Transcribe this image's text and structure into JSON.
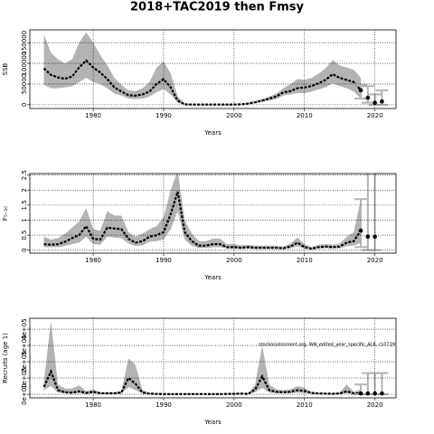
{
  "title": "2018+TAC2019 then Fmsy",
  "chart_data": [
    {
      "type": "line",
      "xlabel": "Years",
      "ylabel": "SSB",
      "grid": true,
      "color": "#000000",
      "band_color": "#b3b3b3",
      "bar_color": "#b3b3b3",
      "xlim": [
        1971,
        2023
      ],
      "ylim": [
        -9000,
        181000
      ],
      "xticks": [
        1980,
        1990,
        2000,
        2010,
        2020
      ],
      "yticks": [
        0,
        50000,
        100000,
        150000
      ],
      "x": [
        1973,
        1974,
        1975,
        1976,
        1977,
        1978,
        1979,
        1980,
        1981,
        1982,
        1983,
        1984,
        1985,
        1986,
        1987,
        1988,
        1989,
        1990,
        1991,
        1992,
        1993,
        1994,
        1995,
        1996,
        1997,
        1998,
        1999,
        2000,
        2001,
        2002,
        2003,
        2004,
        2005,
        2006,
        2007,
        2008,
        2009,
        2010,
        2011,
        2012,
        2013,
        2014,
        2015,
        2016,
        2017,
        2018
      ],
      "values": [
        88000,
        72000,
        66000,
        63000,
        68000,
        90000,
        107000,
        90000,
        78000,
        62000,
        42000,
        32000,
        23000,
        22000,
        25000,
        32000,
        50000,
        62000,
        42000,
        10000,
        1000,
        500,
        500,
        500,
        500,
        500,
        500,
        500,
        1000,
        3000,
        6000,
        10000,
        15000,
        20000,
        30000,
        33000,
        40000,
        42000,
        45000,
        52000,
        60000,
        74000,
        65000,
        60000,
        55000,
        35000
      ],
      "upper": [
        170000,
        125000,
        110000,
        100000,
        110000,
        150000,
        175000,
        150000,
        120000,
        95000,
        65000,
        48000,
        35000,
        33000,
        40000,
        55000,
        90000,
        105000,
        75000,
        20000,
        3000,
        1500,
        1500,
        1500,
        1500,
        1500,
        1500,
        1500,
        2000,
        5000,
        9000,
        14000,
        20000,
        27000,
        40000,
        50000,
        62000,
        60000,
        65000,
        75000,
        88000,
        108000,
        95000,
        90000,
        85000,
        65000
      ],
      "lower": [
        48000,
        40000,
        40000,
        42000,
        45000,
        55000,
        65000,
        55000,
        50000,
        40000,
        27000,
        22000,
        15000,
        14000,
        15000,
        20000,
        30000,
        38000,
        25000,
        5000,
        300,
        200,
        200,
        200,
        200,
        200,
        200,
        200,
        500,
        2000,
        4000,
        7000,
        10000,
        14000,
        22000,
        25000,
        28000,
        28000,
        32000,
        37000,
        42000,
        52000,
        45000,
        40000,
        32000,
        15000
      ],
      "projection": {
        "x": [
          2018,
          2019,
          2020,
          2021
        ],
        "values": [
          35000,
          17000,
          5000,
          8000
        ],
        "lower": [
          15000,
          5000,
          0,
          0
        ],
        "upper": [
          48000,
          45000,
          25000,
          35000
        ]
      }
    },
    {
      "type": "line",
      "xlabel": "Years",
      "ylabel": "F₅₋₁₀",
      "grid": true,
      "color": "#000000",
      "band_color": "#b3b3b3",
      "bar_color": "#b3b3b3",
      "xlim": [
        1971,
        2023
      ],
      "ylim": [
        -0.1,
        2.55
      ],
      "xticks": [
        1980,
        1990,
        2000,
        2010,
        2020
      ],
      "yticks": [
        0.0,
        0.5,
        1.0,
        1.5,
        2.0,
        2.5
      ],
      "x": [
        1973,
        1974,
        1975,
        1976,
        1977,
        1978,
        1979,
        1980,
        1981,
        1982,
        1983,
        1984,
        1985,
        1986,
        1987,
        1988,
        1989,
        1990,
        1991,
        1992,
        1993,
        1994,
        1995,
        1996,
        1997,
        1998,
        1999,
        2000,
        2001,
        2002,
        2003,
        2004,
        2005,
        2006,
        2007,
        2008,
        2009,
        2010,
        2011,
        2012,
        2013,
        2014,
        2015,
        2016,
        2017,
        2018
      ],
      "values": [
        0.2,
        0.18,
        0.2,
        0.28,
        0.4,
        0.5,
        0.8,
        0.38,
        0.35,
        0.75,
        0.72,
        0.7,
        0.38,
        0.25,
        0.3,
        0.45,
        0.5,
        0.6,
        1.2,
        1.95,
        0.6,
        0.3,
        0.15,
        0.15,
        0.2,
        0.2,
        0.1,
        0.1,
        0.08,
        0.1,
        0.08,
        0.08,
        0.08,
        0.08,
        0.06,
        0.12,
        0.25,
        0.1,
        0.05,
        0.1,
        0.12,
        0.1,
        0.12,
        0.25,
        0.3,
        0.65
      ],
      "upper": [
        0.45,
        0.35,
        0.4,
        0.55,
        0.75,
        0.95,
        1.4,
        0.7,
        0.65,
        1.3,
        1.15,
        1.15,
        0.6,
        0.45,
        0.55,
        0.7,
        0.8,
        1.1,
        2.0,
        2.65,
        1.0,
        0.55,
        0.3,
        0.3,
        0.38,
        0.38,
        0.2,
        0.2,
        0.16,
        0.18,
        0.15,
        0.15,
        0.15,
        0.15,
        0.12,
        0.22,
        0.42,
        0.2,
        0.1,
        0.18,
        0.2,
        0.18,
        0.22,
        0.45,
        0.6,
        1.7
      ],
      "lower": [
        0.1,
        0.1,
        0.1,
        0.14,
        0.2,
        0.25,
        0.45,
        0.2,
        0.18,
        0.45,
        0.42,
        0.4,
        0.22,
        0.14,
        0.16,
        0.28,
        0.3,
        0.35,
        0.7,
        1.3,
        0.35,
        0.15,
        0.07,
        0.07,
        0.1,
        0.1,
        0.05,
        0.05,
        0.04,
        0.05,
        0.04,
        0.04,
        0.04,
        0.04,
        0.03,
        0.06,
        0.13,
        0.05,
        0.02,
        0.05,
        0.06,
        0.05,
        0.06,
        0.13,
        0.15,
        0.25
      ],
      "projection": {
        "x": [
          2018,
          2019,
          2020
        ],
        "values": [
          0.65,
          0.45,
          0.45
        ],
        "lower": [
          0.1,
          0,
          0
        ],
        "upper": [
          1.7,
          2.6,
          2.6
        ]
      }
    },
    {
      "type": "line",
      "xlabel": "Years",
      "ylabel": "Recruits (age 1)",
      "grid": true,
      "color": "#000000",
      "band_color": "#b3b3b3",
      "bar_color": "#b3b3b3",
      "annotation": "stockassessment.org, WH_edited_year_specific_ALK, r10739",
      "xlim": [
        1971,
        2023
      ],
      "ylim": [
        -22000,
        467000
      ],
      "xticks": [
        1980,
        1990,
        2000,
        2010,
        2020
      ],
      "yticks": [
        {
          "value": 0,
          "label": "0e+00"
        },
        {
          "value": 100000,
          "label": "1e+05"
        },
        {
          "value": 200000,
          "label": "2e+05"
        },
        {
          "value": 300000,
          "label": "3e+05"
        },
        {
          "value": 400000,
          "label": "4e+05"
        }
      ],
      "x": [
        1973,
        1974,
        1975,
        1976,
        1977,
        1978,
        1979,
        1980,
        1981,
        1982,
        1983,
        1984,
        1985,
        1986,
        1987,
        1988,
        1989,
        1990,
        1991,
        1992,
        1993,
        1994,
        1995,
        1996,
        1997,
        1998,
        1999,
        2000,
        2001,
        2002,
        2003,
        2004,
        2005,
        2006,
        2007,
        2008,
        2009,
        2010,
        2011,
        2012,
        2013,
        2014,
        2015,
        2016,
        2017,
        2018
      ],
      "values": [
        45000,
        140000,
        25000,
        12000,
        10000,
        18000,
        8000,
        15000,
        6000,
        6000,
        6000,
        10000,
        100000,
        65000,
        10000,
        4000,
        2000,
        1500,
        1000,
        1000,
        1000,
        1000,
        1000,
        1000,
        1000,
        1000,
        2000,
        3000,
        4000,
        2000,
        30000,
        110000,
        25000,
        15000,
        12000,
        15000,
        25000,
        20000,
        8000,
        5000,
        4000,
        3000,
        5000,
        18000,
        5000,
        5000
      ],
      "upper": [
        80000,
        450000,
        60000,
        35000,
        35000,
        55000,
        20000,
        30000,
        12000,
        12000,
        12000,
        20000,
        220000,
        180000,
        25000,
        8000,
        4000,
        3000,
        2000,
        2000,
        2000,
        2000,
        2000,
        2000,
        2000,
        2000,
        4000,
        6000,
        8000,
        5000,
        60000,
        300000,
        60000,
        30000,
        25000,
        30000,
        50000,
        40000,
        15000,
        10000,
        8000,
        6000,
        12000,
        60000,
        15000,
        30000
      ],
      "lower": [
        25000,
        50000,
        10000,
        5000,
        4000,
        6000,
        3000,
        6000,
        2500,
        2500,
        2500,
        4000,
        45000,
        25000,
        4000,
        1500,
        800,
        600,
        400,
        400,
        400,
        400,
        400,
        400,
        400,
        400,
        800,
        1200,
        1500,
        800,
        12000,
        40000,
        10000,
        6000,
        5000,
        6000,
        10000,
        8000,
        3000,
        2000,
        1500,
        1000,
        2000,
        6000,
        2000,
        1500
      ],
      "projection": {
        "x": [
          2018,
          2019,
          2020,
          2021
        ],
        "values": [
          5000,
          5000,
          5000,
          5000
        ],
        "lower": [
          0,
          0,
          0,
          0
        ],
        "upper": [
          60000,
          130000,
          130000,
          130000
        ]
      }
    }
  ]
}
